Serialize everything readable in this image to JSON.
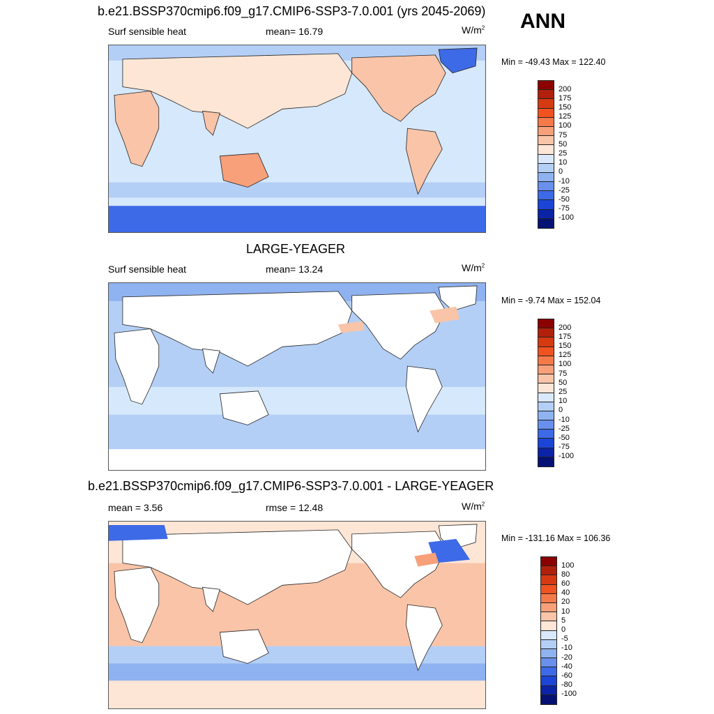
{
  "header": {
    "case_title": "b.e21.BSSP370cmip6.f09_g17.CMIP6-SSP3-7.0.001 (yrs 2045-2069)",
    "season": "ANN"
  },
  "panels": [
    {
      "id": "test",
      "title_above": "",
      "left_label": "Surf sensible heat",
      "center_label": "mean=  16.79",
      "units_base": "W/m",
      "units_exp": "2",
      "minmax": "Min = -49.43 Max = 122.40"
    },
    {
      "id": "obs",
      "title_above": "LARGE-YEAGER",
      "left_label": "Surf sensible heat",
      "center_label": "mean=  13.24",
      "units_base": "W/m",
      "units_exp": "2",
      "minmax": "Min =  -9.74 Max = 152.04"
    },
    {
      "id": "diff",
      "title_above": "b.e21.BSSP370cmip6.f09_g17.CMIP6-SSP3-7.0.001 - LARGE-YEAGER",
      "left_label": "mean =   3.56",
      "center_label": "rmse =  12.48",
      "units_base": "W/m",
      "units_exp": "2",
      "minmax": "Min = -131.16 Max = 106.36"
    }
  ],
  "colorbars": {
    "field": {
      "levels": [
        "200",
        "175",
        "150",
        "125",
        "100",
        "75",
        "50",
        "25",
        "10",
        "0",
        "-10",
        "-25",
        "-50",
        "-75",
        "-100"
      ],
      "colors": [
        "#8b0000",
        "#b0200a",
        "#d63a12",
        "#f0531f",
        "#f57a4a",
        "#f7a07a",
        "#f9c4a8",
        "#fde6d6",
        "#d9e9fb",
        "#b4cff6",
        "#8fb2f0",
        "#6990ec",
        "#3d6ae6",
        "#1b45d6",
        "#0b23a6",
        "#061273"
      ]
    },
    "diff": {
      "levels": [
        "100",
        "80",
        "60",
        "40",
        "20",
        "10",
        "5",
        "0",
        "-5",
        "-10",
        "-20",
        "-40",
        "-60",
        "-80",
        "-100"
      ],
      "colors": [
        "#8b0000",
        "#b0200a",
        "#d63a12",
        "#f0531f",
        "#f57a4a",
        "#f7a07a",
        "#f9c4a8",
        "#fde6d6",
        "#d9e9fb",
        "#b4cff6",
        "#8fb2f0",
        "#6990ec",
        "#3d6ae6",
        "#1b45d6",
        "#0b23a6",
        "#061273"
      ]
    }
  },
  "map_colors": {
    "ocean_light": "#d6e8fb",
    "ocean_mid": "#b4cff6",
    "ocean_blue": "#8fb2f0",
    "ocean_deep": "#3d6ae6",
    "land_warm": "#f9c4a8",
    "land_pale": "#fde6d6",
    "land_hot": "#f7a07a",
    "land_white": "#ffffff",
    "coast": "#222222"
  }
}
